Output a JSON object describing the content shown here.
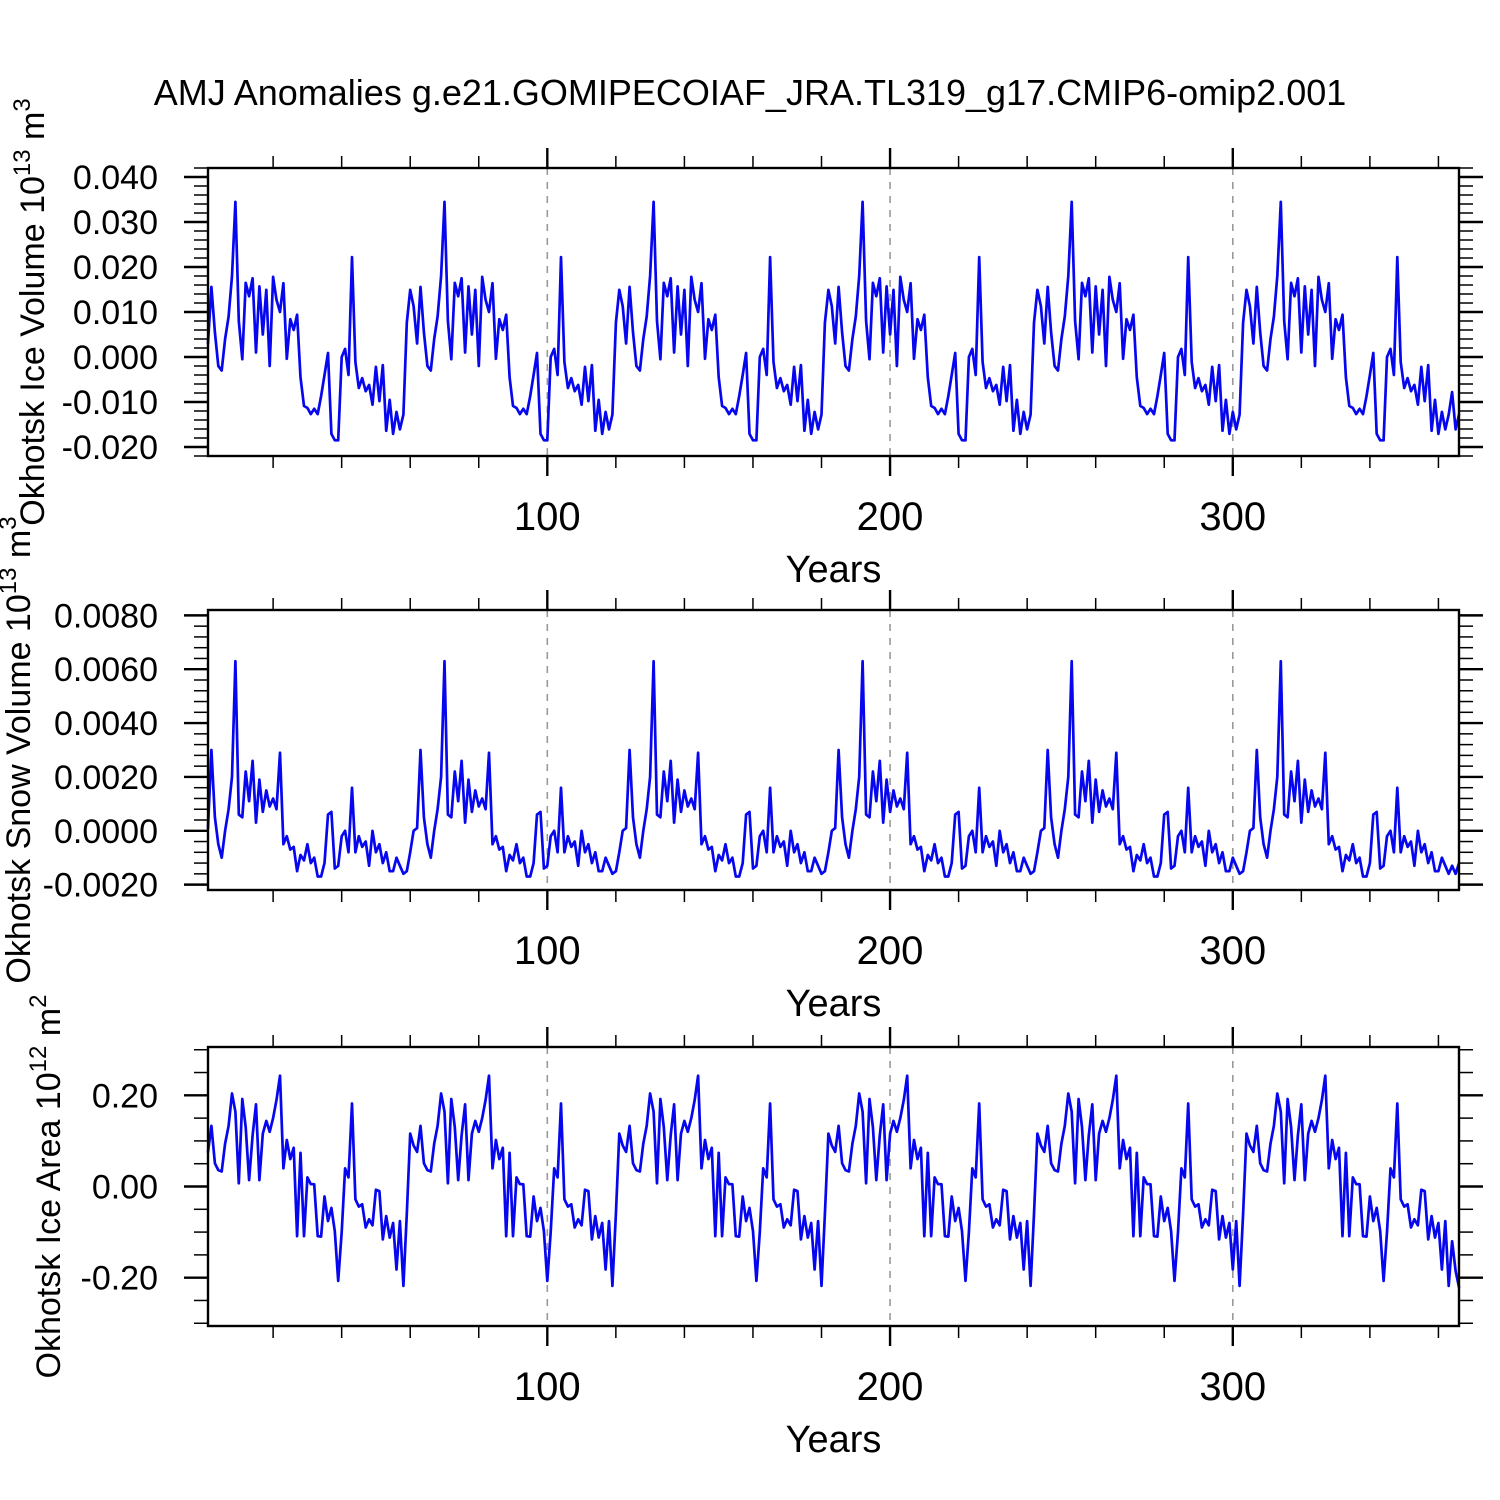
{
  "title": "AMJ Anomalies g.e21.GOMIPECOIAF_JRA.TL319_g17.CMIP6-omip2.001",
  "colors": {
    "line": "#0707ef",
    "frame": "#000000",
    "grid": "#999999",
    "background": "#ffffff",
    "text": "#000000"
  },
  "x_axis": {
    "label": "Years",
    "start": 1,
    "end": 366,
    "major_ticks": [
      100,
      200,
      300
    ],
    "minor_step": 20,
    "grid_at_major": true,
    "cycle_length_years": 61
  },
  "chart_data": [
    {
      "type": "line",
      "name": "okhotsk-ice-volume",
      "ylabel": "Okhotsk Ice Volume 10^13 m^3",
      "ylabel_parts": {
        "pre": "Okhotsk Ice Volume 10",
        "sup1": "13",
        "mid": " m",
        "sup2": "3"
      },
      "xlabel": "Years",
      "ylim": [
        -0.022,
        0.042
      ],
      "yticks": [
        -0.02,
        -0.01,
        0.0,
        0.01,
        0.02,
        0.03,
        0.04
      ],
      "ytick_decimals": 3,
      "yminor_step": 0.002,
      "values": [
        0.003,
        0.0156,
        0.0055,
        -0.002,
        -0.003,
        0.004,
        0.009,
        0.018,
        0.0345,
        0.008,
        -0.0005,
        0.0165,
        0.0135,
        0.0175,
        0.001,
        0.0157,
        0.005,
        0.0149,
        -0.002,
        0.0178,
        0.0127,
        0.01,
        0.0164,
        -0.0004,
        0.0084,
        0.006,
        0.0094,
        -0.0045,
        -0.0109,
        -0.0113,
        -0.0127,
        -0.0115,
        -0.0127,
        -0.0087,
        -0.004,
        0.0009,
        -0.0171,
        -0.0185,
        -0.0185,
        0.0,
        0.0018,
        -0.004,
        0.0222,
        -0.0011,
        -0.0069,
        -0.0047,
        -0.0076,
        -0.0062,
        -0.0106,
        -0.0022,
        -0.0098,
        -0.0018,
        -0.0164,
        -0.0095,
        -0.0171,
        -0.0122,
        -0.0161,
        -0.0128,
        0.0076,
        0.0149,
        0.0113,
        0.003,
        0.0156,
        0.0055,
        -0.002,
        -0.003,
        0.004,
        0.009,
        0.018,
        0.0345,
        0.008,
        -0.0005,
        0.0165,
        0.0135,
        0.0175,
        0.001,
        0.0157,
        0.005,
        0.0149,
        -0.002,
        0.0178,
        0.0127,
        0.01,
        0.0164,
        -0.0004,
        0.0084,
        0.006,
        0.0094,
        -0.0045,
        -0.0109,
        -0.0113,
        -0.0127,
        -0.0115,
        -0.0127,
        -0.0087,
        -0.004,
        0.0009,
        -0.0171,
        -0.0185,
        -0.0185,
        0.0,
        0.0018,
        -0.004,
        0.0222,
        -0.0011,
        -0.0069,
        -0.0047,
        -0.0076,
        -0.0062,
        -0.0106,
        -0.0022,
        -0.0098,
        -0.0018,
        -0.0164,
        -0.0095,
        -0.0171,
        -0.0122,
        -0.0161,
        -0.0128,
        0.0076,
        0.0149,
        0.0113,
        0.003,
        0.0156,
        0.0055,
        -0.002,
        -0.003,
        0.004,
        0.009,
        0.018,
        0.0345,
        0.008,
        -0.0005,
        0.0165,
        0.0135,
        0.0175,
        0.001,
        0.0157,
        0.005,
        0.0149,
        -0.002,
        0.0178,
        0.0127,
        0.01,
        0.0164,
        -0.0004,
        0.0084,
        0.006,
        0.0094,
        -0.0045,
        -0.0109,
        -0.0113,
        -0.0127,
        -0.0115,
        -0.0127,
        -0.0087,
        -0.004,
        0.0009,
        -0.0171,
        -0.0185,
        -0.0185,
        0.0,
        0.0018,
        -0.004,
        0.0222,
        -0.0011,
        -0.0069,
        -0.0047,
        -0.0076,
        -0.0062,
        -0.0106,
        -0.0022,
        -0.0098,
        -0.0018,
        -0.0164,
        -0.0095,
        -0.0171,
        -0.0122,
        -0.0161,
        -0.0128,
        0.0076,
        0.0149,
        0.0113,
        0.003,
        0.0156,
        0.0055,
        -0.002,
        -0.003,
        0.004,
        0.009,
        0.018,
        0.0345,
        0.008,
        -0.0005,
        0.0165,
        0.0135,
        0.0175,
        0.001,
        0.0157,
        0.005,
        0.0149,
        -0.002,
        0.0178,
        0.0127,
        0.01,
        0.0164,
        -0.0004,
        0.0084,
        0.006,
        0.0094,
        -0.0045,
        -0.0109,
        -0.0113,
        -0.0127,
        -0.0115,
        -0.0127,
        -0.0087,
        -0.004,
        0.0009,
        -0.0171,
        -0.0185,
        -0.0185,
        0.0,
        0.0018,
        -0.004,
        0.0222,
        -0.0011,
        -0.0069,
        -0.0047,
        -0.0076,
        -0.0062,
        -0.0106,
        -0.0022,
        -0.0098,
        -0.0018,
        -0.0164,
        -0.0095,
        -0.0171,
        -0.0122,
        -0.0161,
        -0.0128,
        0.0076,
        0.0149,
        0.0113,
        0.003,
        0.0156,
        0.0055,
        -0.002,
        -0.003,
        0.004,
        0.009,
        0.018,
        0.0345,
        0.008,
        -0.0005,
        0.0165,
        0.0135,
        0.0175,
        0.001,
        0.0157,
        0.005,
        0.0149,
        -0.002,
        0.0178,
        0.0127,
        0.01,
        0.0164,
        -0.0004,
        0.0084,
        0.006,
        0.0094,
        -0.0045,
        -0.0109,
        -0.0113,
        -0.0127,
        -0.0115,
        -0.0127,
        -0.0087,
        -0.004,
        0.0009,
        -0.0171,
        -0.0185,
        -0.0185,
        0.0,
        0.0018,
        -0.004,
        0.0222,
        -0.0011,
        -0.0069,
        -0.0047,
        -0.0076,
        -0.0062,
        -0.0106,
        -0.0022,
        -0.0098,
        -0.0018,
        -0.0164,
        -0.0095,
        -0.0171,
        -0.0122,
        -0.0161,
        -0.0128,
        0.0076,
        0.0149,
        0.0113,
        0.003,
        0.0156,
        0.0055,
        -0.002,
        -0.003,
        0.004,
        0.009,
        0.018,
        0.0345,
        0.008,
        -0.0005,
        0.0165,
        0.0135,
        0.0175,
        0.001,
        0.0157,
        0.005,
        0.0149,
        -0.002,
        0.0178,
        0.0127,
        0.01,
        0.0164,
        -0.0004,
        0.0084,
        0.006,
        0.0094,
        -0.0045,
        -0.0109,
        -0.0113,
        -0.0127,
        -0.0115,
        -0.0127,
        -0.0087,
        -0.004,
        0.0009,
        -0.0171,
        -0.0185,
        -0.0185,
        0.0,
        0.0018,
        -0.004,
        0.0222,
        -0.0011,
        -0.0069,
        -0.0047,
        -0.0076,
        -0.0062,
        -0.0106,
        -0.0022,
        -0.0098,
        -0.0018,
        -0.0164,
        -0.0095,
        -0.0171,
        -0.0122,
        -0.0161,
        -0.0128,
        -0.0078,
        -0.0161,
        -0.0128
      ]
    },
    {
      "type": "line",
      "name": "okhotsk-snow-volume",
      "ylabel": "Okhotsk Snow Volume 10^13 m^3",
      "ylabel_parts": {
        "pre": "Okhotsk Snow Volume 10",
        "sup1": "13",
        "mid": " m",
        "sup2": "3"
      },
      "xlabel": "Years",
      "ylim": [
        -0.0022,
        0.0082
      ],
      "yticks": [
        -0.002,
        0.0,
        0.002,
        0.004,
        0.006,
        0.008
      ],
      "ytick_decimals": 4,
      "yminor_step": 0.0004,
      "values": [
        0.0001,
        0.003,
        0.0005,
        -0.0005,
        -0.001,
        0.0,
        0.0008,
        0.002,
        0.0063,
        0.0006,
        0.0005,
        0.0022,
        0.0011,
        0.0026,
        0.0003,
        0.0019,
        0.0007,
        0.0015,
        0.0009,
        0.0012,
        0.0008,
        0.0029,
        -0.0005,
        -0.0002,
        -0.0007,
        -0.0006,
        -0.0015,
        -0.0009,
        -0.0011,
        -0.0005,
        -0.0012,
        -0.001,
        -0.0017,
        -0.0017,
        -0.0012,
        0.0006,
        0.0007,
        -0.0014,
        -0.0013,
        -0.0002,
        0.0,
        -0.0008,
        0.0016,
        -0.0008,
        -0.0002,
        -0.0006,
        -0.0004,
        -0.0013,
        0.0,
        -0.0008,
        -0.0005,
        -0.0012,
        -0.0008,
        -0.0015,
        -0.0015,
        -0.001,
        -0.0013,
        -0.0016,
        -0.0015,
        -0.0008,
        0.0,
        0.0001,
        0.003,
        0.0005,
        -0.0005,
        -0.001,
        0.0,
        0.0008,
        0.002,
        0.0063,
        0.0006,
        0.0005,
        0.0022,
        0.0011,
        0.0026,
        0.0003,
        0.0019,
        0.0007,
        0.0015,
        0.0009,
        0.0012,
        0.0008,
        0.0029,
        -0.0005,
        -0.0002,
        -0.0007,
        -0.0006,
        -0.0015,
        -0.0009,
        -0.0011,
        -0.0005,
        -0.0012,
        -0.001,
        -0.0017,
        -0.0017,
        -0.0012,
        0.0006,
        0.0007,
        -0.0014,
        -0.0013,
        -0.0002,
        0.0,
        -0.0008,
        0.0016,
        -0.0008,
        -0.0002,
        -0.0006,
        -0.0004,
        -0.0013,
        0.0,
        -0.0008,
        -0.0005,
        -0.0012,
        -0.0008,
        -0.0015,
        -0.0015,
        -0.001,
        -0.0013,
        -0.0016,
        -0.0015,
        -0.0008,
        0.0,
        0.0001,
        0.003,
        0.0005,
        -0.0005,
        -0.001,
        0.0,
        0.0008,
        0.002,
        0.0063,
        0.0006,
        0.0005,
        0.0022,
        0.0011,
        0.0026,
        0.0003,
        0.0019,
        0.0007,
        0.0015,
        0.0009,
        0.0012,
        0.0008,
        0.0029,
        -0.0005,
        -0.0002,
        -0.0007,
        -0.0006,
        -0.0015,
        -0.0009,
        -0.0011,
        -0.0005,
        -0.0012,
        -0.001,
        -0.0017,
        -0.0017,
        -0.0012,
        0.0006,
        0.0007,
        -0.0014,
        -0.0013,
        -0.0002,
        0.0,
        -0.0008,
        0.0016,
        -0.0008,
        -0.0002,
        -0.0006,
        -0.0004,
        -0.0013,
        0.0,
        -0.0008,
        -0.0005,
        -0.0012,
        -0.0008,
        -0.0015,
        -0.0015,
        -0.001,
        -0.0013,
        -0.0016,
        -0.0015,
        -0.0008,
        0.0,
        0.0001,
        0.003,
        0.0005,
        -0.0005,
        -0.001,
        0.0,
        0.0008,
        0.002,
        0.0063,
        0.0006,
        0.0005,
        0.0022,
        0.0011,
        0.0026,
        0.0003,
        0.0019,
        0.0007,
        0.0015,
        0.0009,
        0.0012,
        0.0008,
        0.0029,
        -0.0005,
        -0.0002,
        -0.0007,
        -0.0006,
        -0.0015,
        -0.0009,
        -0.0011,
        -0.0005,
        -0.0012,
        -0.001,
        -0.0017,
        -0.0017,
        -0.0012,
        0.0006,
        0.0007,
        -0.0014,
        -0.0013,
        -0.0002,
        0.0,
        -0.0008,
        0.0016,
        -0.0008,
        -0.0002,
        -0.0006,
        -0.0004,
        -0.0013,
        0.0,
        -0.0008,
        -0.0005,
        -0.0012,
        -0.0008,
        -0.0015,
        -0.0015,
        -0.001,
        -0.0013,
        -0.0016,
        -0.0015,
        -0.0008,
        0.0,
        0.0001,
        0.003,
        0.0005,
        -0.0005,
        -0.001,
        0.0,
        0.0008,
        0.002,
        0.0063,
        0.0006,
        0.0005,
        0.0022,
        0.0011,
        0.0026,
        0.0003,
        0.0019,
        0.0007,
        0.0015,
        0.0009,
        0.0012,
        0.0008,
        0.0029,
        -0.0005,
        -0.0002,
        -0.0007,
        -0.0006,
        -0.0015,
        -0.0009,
        -0.0011,
        -0.0005,
        -0.0012,
        -0.001,
        -0.0017,
        -0.0017,
        -0.0012,
        0.0006,
        0.0007,
        -0.0014,
        -0.0013,
        -0.0002,
        0.0,
        -0.0008,
        0.0016,
        -0.0008,
        -0.0002,
        -0.0006,
        -0.0004,
        -0.0013,
        0.0,
        -0.0008,
        -0.0005,
        -0.0012,
        -0.0008,
        -0.0015,
        -0.0015,
        -0.001,
        -0.0013,
        -0.0016,
        -0.0015,
        -0.0008,
        0.0,
        0.0001,
        0.003,
        0.0005,
        -0.0005,
        -0.001,
        0.0,
        0.0008,
        0.002,
        0.0063,
        0.0006,
        0.0005,
        0.0022,
        0.0011,
        0.0026,
        0.0003,
        0.0019,
        0.0007,
        0.0015,
        0.0009,
        0.0012,
        0.0008,
        0.0029,
        -0.0005,
        -0.0002,
        -0.0007,
        -0.0006,
        -0.0015,
        -0.0009,
        -0.0011,
        -0.0005,
        -0.0012,
        -0.001,
        -0.0017,
        -0.0017,
        -0.0012,
        0.0006,
        0.0007,
        -0.0014,
        -0.0013,
        -0.0002,
        0.0,
        -0.0008,
        0.0016,
        -0.0008,
        -0.0002,
        -0.0006,
        -0.0004,
        -0.0013,
        0.0,
        -0.0008,
        -0.0005,
        -0.0012,
        -0.0008,
        -0.0015,
        -0.0015,
        -0.001,
        -0.0013,
        -0.0016,
        -0.0013,
        -0.0016,
        -0.0012
      ]
    },
    {
      "type": "line",
      "name": "okhotsk-ice-area",
      "ylabel": "Okhotsk Ice Area 10^12 m^2",
      "ylabel_parts": {
        "pre": "Okhotsk Ice Area 10",
        "sup1": "12",
        "mid": " m",
        "sup2": "2"
      },
      "xlabel": "Years",
      "ylim": [
        -0.306,
        0.306
      ],
      "yticks": [
        -0.2,
        0.0,
        0.2
      ],
      "ytick_decimals": 2,
      "yminor_step": 0.05,
      "values": [
        0.076,
        0.133,
        0.051,
        0.036,
        0.033,
        0.094,
        0.133,
        0.204,
        0.164,
        0.007,
        0.192,
        0.13,
        0.014,
        0.112,
        0.18,
        0.014,
        0.116,
        0.144,
        0.12,
        0.15,
        0.19,
        0.243,
        0.04,
        0.102,
        0.06,
        0.085,
        -0.109,
        0.074,
        -0.109,
        0.02,
        0.005,
        0.005,
        -0.109,
        -0.11,
        -0.022,
        -0.076,
        -0.047,
        -0.098,
        -0.207,
        -0.1,
        0.04,
        0.02,
        0.182,
        -0.028,
        -0.044,
        -0.039,
        -0.09,
        -0.072,
        -0.085,
        -0.007,
        -0.01,
        -0.116,
        -0.065,
        -0.112,
        -0.08,
        -0.182,
        -0.076,
        -0.218,
        -0.06,
        0.116,
        0.09,
        0.076,
        0.133,
        0.051,
        0.036,
        0.033,
        0.094,
        0.133,
        0.204,
        0.164,
        0.007,
        0.192,
        0.13,
        0.014,
        0.112,
        0.18,
        0.014,
        0.116,
        0.144,
        0.12,
        0.15,
        0.19,
        0.243,
        0.04,
        0.102,
        0.06,
        0.085,
        -0.109,
        0.074,
        -0.109,
        0.02,
        0.005,
        0.005,
        -0.109,
        -0.11,
        -0.022,
        -0.076,
        -0.047,
        -0.098,
        -0.207,
        -0.1,
        0.04,
        0.02,
        0.182,
        -0.028,
        -0.044,
        -0.039,
        -0.09,
        -0.072,
        -0.085,
        -0.007,
        -0.01,
        -0.116,
        -0.065,
        -0.112,
        -0.08,
        -0.182,
        -0.076,
        -0.218,
        -0.06,
        0.116,
        0.09,
        0.076,
        0.133,
        0.051,
        0.036,
        0.033,
        0.094,
        0.133,
        0.204,
        0.164,
        0.007,
        0.192,
        0.13,
        0.014,
        0.112,
        0.18,
        0.014,
        0.116,
        0.144,
        0.12,
        0.15,
        0.19,
        0.243,
        0.04,
        0.102,
        0.06,
        0.085,
        -0.109,
        0.074,
        -0.109,
        0.02,
        0.005,
        0.005,
        -0.109,
        -0.11,
        -0.022,
        -0.076,
        -0.047,
        -0.098,
        -0.207,
        -0.1,
        0.04,
        0.02,
        0.182,
        -0.028,
        -0.044,
        -0.039,
        -0.09,
        -0.072,
        -0.085,
        -0.007,
        -0.01,
        -0.116,
        -0.065,
        -0.112,
        -0.08,
        -0.182,
        -0.076,
        -0.218,
        -0.06,
        0.116,
        0.09,
        0.076,
        0.133,
        0.051,
        0.036,
        0.033,
        0.094,
        0.133,
        0.204,
        0.164,
        0.007,
        0.192,
        0.13,
        0.014,
        0.112,
        0.18,
        0.014,
        0.116,
        0.144,
        0.12,
        0.15,
        0.19,
        0.243,
        0.04,
        0.102,
        0.06,
        0.085,
        -0.109,
        0.074,
        -0.109,
        0.02,
        0.005,
        0.005,
        -0.109,
        -0.11,
        -0.022,
        -0.076,
        -0.047,
        -0.098,
        -0.207,
        -0.1,
        0.04,
        0.02,
        0.182,
        -0.028,
        -0.044,
        -0.039,
        -0.09,
        -0.072,
        -0.085,
        -0.007,
        -0.01,
        -0.116,
        -0.065,
        -0.112,
        -0.08,
        -0.182,
        -0.076,
        -0.218,
        -0.06,
        0.116,
        0.09,
        0.076,
        0.133,
        0.051,
        0.036,
        0.033,
        0.094,
        0.133,
        0.204,
        0.164,
        0.007,
        0.192,
        0.13,
        0.014,
        0.112,
        0.18,
        0.014,
        0.116,
        0.144,
        0.12,
        0.15,
        0.19,
        0.243,
        0.04,
        0.102,
        0.06,
        0.085,
        -0.109,
        0.074,
        -0.109,
        0.02,
        0.005,
        0.005,
        -0.109,
        -0.11,
        -0.022,
        -0.076,
        -0.047,
        -0.098,
        -0.207,
        -0.1,
        0.04,
        0.02,
        0.182,
        -0.028,
        -0.044,
        -0.039,
        -0.09,
        -0.072,
        -0.085,
        -0.007,
        -0.01,
        -0.116,
        -0.065,
        -0.112,
        -0.08,
        -0.182,
        -0.076,
        -0.218,
        -0.06,
        0.116,
        0.09,
        0.076,
        0.133,
        0.051,
        0.036,
        0.033,
        0.094,
        0.133,
        0.204,
        0.164,
        0.007,
        0.192,
        0.13,
        0.014,
        0.112,
        0.18,
        0.014,
        0.116,
        0.144,
        0.12,
        0.15,
        0.19,
        0.243,
        0.04,
        0.102,
        0.06,
        0.085,
        -0.109,
        0.074,
        -0.109,
        0.02,
        0.005,
        0.005,
        -0.109,
        -0.11,
        -0.022,
        -0.076,
        -0.047,
        -0.098,
        -0.207,
        -0.1,
        0.04,
        0.02,
        0.182,
        -0.028,
        -0.044,
        -0.039,
        -0.09,
        -0.072,
        -0.085,
        -0.007,
        -0.01,
        -0.116,
        -0.065,
        -0.112,
        -0.08,
        -0.182,
        -0.076,
        -0.218,
        -0.12,
        -0.185,
        -0.221
      ]
    }
  ]
}
